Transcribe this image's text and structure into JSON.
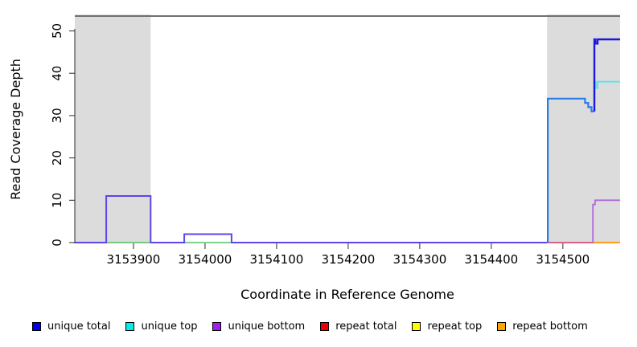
{
  "chart_data": {
    "type": "line",
    "subtype": "step-coverage-plot",
    "title": "",
    "xlabel": "Coordinate in Reference Genome",
    "ylabel": "Read Coverage Depth",
    "xlim": [
      3153818,
      3154580
    ],
    "ylim": [
      0,
      53.5
    ],
    "grid": false,
    "x_ticks": [
      3153900,
      3154000,
      3154100,
      3154200,
      3154300,
      3154400,
      3154500
    ],
    "y_ticks": [
      0,
      10,
      20,
      30,
      40,
      50
    ],
    "shaded_regions": [
      {
        "x0": 3153818,
        "x1": 3153924,
        "color": "#dcdcdc"
      },
      {
        "x0": 3154478,
        "x1": 3154580,
        "color": "#dcdcdc"
      }
    ],
    "frame_top_line": {
      "y": 53.5,
      "color": "#707070",
      "width": 2
    },
    "series": [
      {
        "name": "unique-total-baseline-and-bumps",
        "color": "#5a46ec",
        "width": 2,
        "points": [
          [
            3153818,
            0
          ],
          [
            3153862,
            0
          ],
          [
            3153862,
            11
          ],
          [
            3153924,
            11
          ],
          [
            3153924,
            0
          ],
          [
            3153971,
            0
          ],
          [
            3153971,
            2
          ],
          [
            3154037,
            2
          ],
          [
            3154037,
            0
          ],
          [
            3154478,
            0
          ]
        ]
      },
      {
        "name": "under-bump1-green-baseline",
        "color": "#55c468",
        "width": 1.6,
        "points": [
          [
            3153863,
            0
          ],
          [
            3153923,
            0
          ]
        ]
      },
      {
        "name": "under-bump2-green-baseline",
        "color": "#55c468",
        "width": 1.6,
        "points": [
          [
            3153972,
            0
          ],
          [
            3154036,
            0
          ]
        ]
      },
      {
        "name": "repeat-total-baseline-right",
        "color": "#d23c6e",
        "width": 1.6,
        "points": [
          [
            3154478,
            0
          ],
          [
            3154543,
            0
          ]
        ]
      },
      {
        "name": "repeat-bottom-baseline-right",
        "color": "#ff9e1b",
        "width": 2,
        "points": [
          [
            3154543,
            0
          ],
          [
            3154580,
            0
          ]
        ]
      },
      {
        "name": "unique-total-plateau-34",
        "color": "#2b7ce9",
        "width": 2.2,
        "points": [
          [
            3154479,
            0
          ],
          [
            3154479,
            34
          ],
          [
            3154531,
            34
          ],
          [
            3154531,
            33
          ],
          [
            3154535.5,
            33
          ],
          [
            3154535.5,
            32
          ],
          [
            3154540,
            32
          ],
          [
            3154540,
            31
          ],
          [
            3154544,
            31
          ]
        ]
      },
      {
        "name": "unique-bottom-line",
        "color": "#b168dc",
        "width": 1.8,
        "points": [
          [
            3154542,
            0
          ],
          [
            3154542,
            9
          ],
          [
            3154545,
            9
          ],
          [
            3154545,
            10
          ],
          [
            3154580,
            10
          ]
        ]
      },
      {
        "name": "unique-top-line",
        "color": "#5fe4e9",
        "width": 2,
        "points": [
          [
            3154545,
            38
          ],
          [
            3154546,
            38
          ],
          [
            3154546,
            36.5
          ],
          [
            3154548.5,
            36.5
          ],
          [
            3154548.5,
            38
          ],
          [
            3154580,
            38
          ]
        ]
      },
      {
        "name": "unique-total-high-48",
        "color": "#1a18dc",
        "width": 2.4,
        "points": [
          [
            3154544,
            31
          ],
          [
            3154544,
            48
          ],
          [
            3154545.5,
            48
          ],
          [
            3154545.5,
            47
          ],
          [
            3154548.5,
            47
          ],
          [
            3154548.5,
            48
          ],
          [
            3154580,
            48
          ]
        ]
      }
    ],
    "legend_position": "bottom"
  },
  "legend": {
    "items": [
      {
        "label": "unique total",
        "color": "#0000ee"
      },
      {
        "label": "unique top",
        "color": "#00eeee"
      },
      {
        "label": "unique bottom",
        "color": "#a020f0"
      },
      {
        "label": "repeat total",
        "color": "#ee0000"
      },
      {
        "label": "repeat top",
        "color": "#ffff00"
      },
      {
        "label": "repeat bottom",
        "color": "#ffa500"
      }
    ]
  },
  "axes": {
    "xlabel": "Coordinate in Reference Genome",
    "ylabel": "Read Coverage Depth"
  }
}
